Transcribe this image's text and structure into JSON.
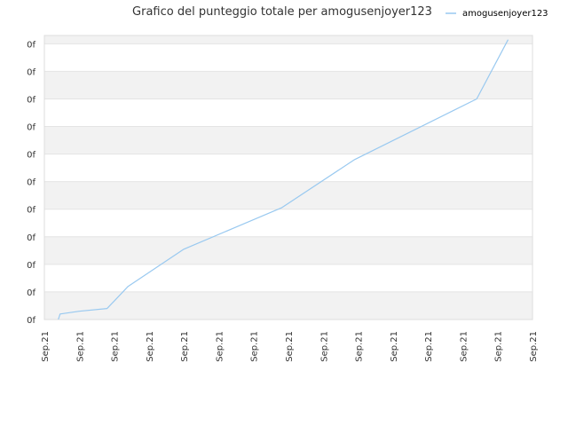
{
  "chart_data": {
    "type": "line",
    "title": "Grafico del punteggio totale per amogusenjoyer123",
    "legend": {
      "position": "top-right",
      "entries": [
        "amogusenjoyer123"
      ]
    },
    "x_tick_labels": [
      "Sep.21",
      "Sep.21",
      "Sep.21",
      "Sep.21",
      "Sep.21",
      "Sep.21",
      "Sep.21",
      "Sep.21",
      "Sep.21",
      "Sep.21",
      "Sep.21",
      "Sep.21",
      "Sep.21",
      "Sep.21",
      "Sep.21"
    ],
    "y_tick_labels": [
      "0f",
      "0f",
      "0f",
      "0f",
      "0f",
      "0f",
      "0f",
      "0f",
      "0f",
      "0f",
      "0f"
    ],
    "xlim": [
      0,
      14
    ],
    "ylim": [
      0,
      10.3
    ],
    "grid": true,
    "band_colors": [
      "#f2f2f2",
      "#ffffff"
    ],
    "series": [
      {
        "name": "amogusenjoyer123",
        "color": "#99c9f0",
        "x": [
          0.4,
          0.45,
          1.0,
          1.8,
          2.4,
          4.0,
          6.8,
          8.9,
          12.4,
          13.3
        ],
        "y": [
          0.0,
          0.2,
          0.3,
          0.4,
          1.2,
          2.55,
          4.05,
          5.8,
          8.0,
          10.15
        ]
      }
    ]
  }
}
